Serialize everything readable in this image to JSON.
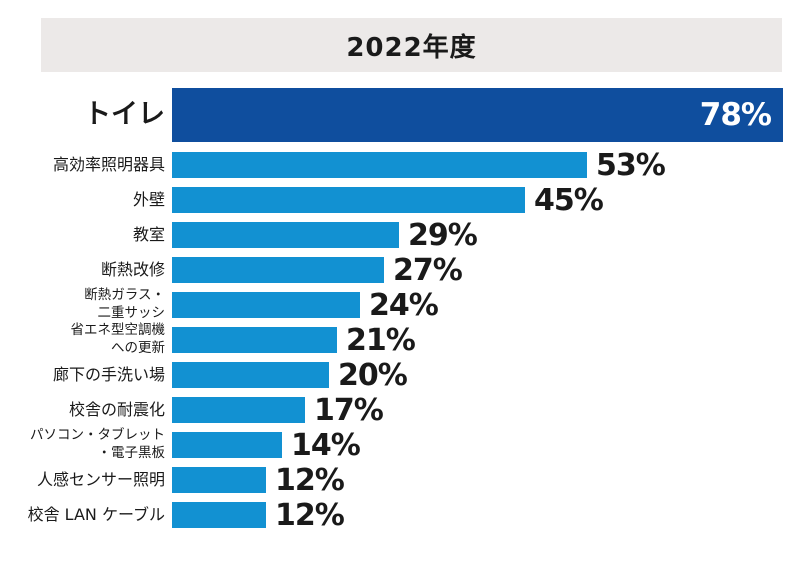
{
  "header": {
    "title": "2022年度"
  },
  "colors": {
    "bar_primary": "#0F4E9E",
    "bar_secondary": "#1291D2",
    "header_bg": "#ECE9E8",
    "text": "#1A1A1A",
    "value_inside": "#FFFFFF"
  },
  "chart_data": {
    "type": "bar",
    "orientation": "horizontal",
    "title": "2022年度",
    "categories": [
      "トイレ",
      "高効率照明器具",
      "外壁",
      "教室",
      "断熱改修",
      "断熱ガラス・\n二重サッシ",
      "省エネ型空調機\nへの更新",
      "廊下の手洗い場",
      "校舎の耐震化",
      "パソコン・タブレット\n・電子黒板",
      "人感センサー照明",
      "校舎 LAN ケーブル"
    ],
    "values": [
      78,
      53,
      45,
      29,
      27,
      24,
      21,
      20,
      17,
      14,
      12,
      12
    ],
    "unit": "%",
    "value_labels": [
      "78%",
      "53%",
      "45%",
      "29%",
      "27%",
      "24%",
      "21%",
      "20%",
      "17%",
      "14%",
      "12%",
      "12%"
    ],
    "xlim": [
      0,
      78
    ],
    "highlight_index": 0,
    "legend": "none",
    "grid": "off"
  }
}
